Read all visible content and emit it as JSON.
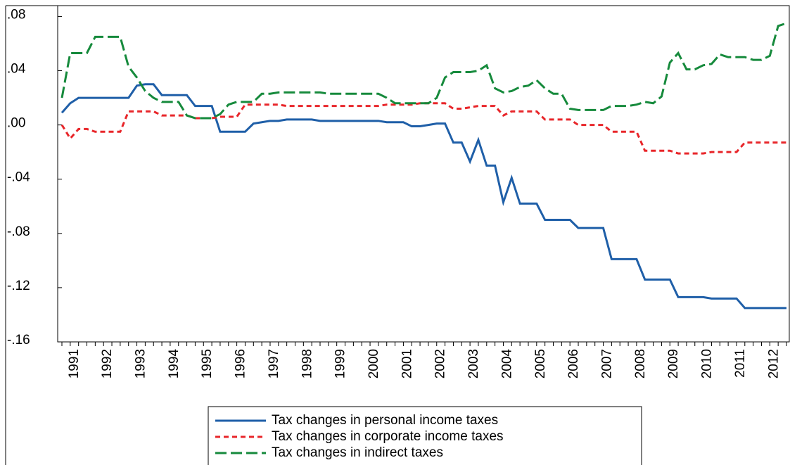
{
  "chart_data": {
    "type": "line",
    "categories": [
      null,
      "1991",
      null,
      null,
      null,
      "1992",
      null,
      null,
      null,
      "1993",
      null,
      null,
      null,
      "1994",
      null,
      null,
      null,
      "1995",
      null,
      null,
      null,
      "1996",
      null,
      null,
      null,
      "1997",
      null,
      null,
      null,
      "1998",
      null,
      null,
      null,
      "1999",
      null,
      null,
      null,
      "2000",
      null,
      null,
      null,
      "2001",
      null,
      null,
      null,
      "2002",
      null,
      null,
      null,
      "2003",
      null,
      null,
      null,
      "2004",
      null,
      null,
      null,
      "2005",
      null,
      null,
      null,
      "2006",
      null,
      null,
      null,
      "2007",
      null,
      null,
      null,
      "2008",
      null,
      null,
      null,
      "2009",
      null,
      null,
      null,
      "2010",
      null,
      null,
      null,
      "2011",
      null,
      null,
      null,
      "2012",
      null,
      null
    ],
    "series": [
      {
        "name": "Tax changes in personal income taxes",
        "color": "#1f5fa8",
        "dash": "solid",
        "values": [
          0.009,
          0.016,
          0.02,
          0.02,
          0.02,
          0.02,
          0.02,
          0.02,
          0.02,
          0.029,
          0.03,
          0.03,
          0.022,
          0.022,
          0.022,
          0.022,
          0.014,
          0.014,
          0.014,
          -0.005,
          -0.005,
          -0.005,
          -0.005,
          0.001,
          0.002,
          0.003,
          0.003,
          0.004,
          0.004,
          0.004,
          0.004,
          0.003,
          0.003,
          0.003,
          0.003,
          0.003,
          0.003,
          0.003,
          0.003,
          0.002,
          0.002,
          0.002,
          -0.001,
          -0.001,
          0.0,
          0.001,
          0.001,
          -0.013,
          -0.013,
          -0.027,
          -0.011,
          -0.03,
          -0.03,
          -0.057,
          -0.039,
          -0.058,
          -0.058,
          -0.058,
          -0.07,
          -0.07,
          -0.07,
          -0.07,
          -0.076,
          -0.076,
          -0.076,
          -0.076,
          -0.099,
          -0.099,
          -0.099,
          -0.099,
          -0.114,
          -0.114,
          -0.114,
          -0.114,
          -0.127,
          -0.127,
          -0.127,
          -0.127,
          -0.128,
          -0.128,
          -0.128,
          -0.128,
          -0.135,
          -0.135,
          -0.135,
          -0.135,
          -0.135,
          -0.135
        ]
      },
      {
        "name": "Tax changes in corporate income taxes",
        "color": "#e8262a",
        "dash": "short",
        "values": [
          0.0,
          -0.01,
          -0.003,
          -0.003,
          -0.005,
          -0.005,
          -0.005,
          -0.005,
          0.01,
          0.01,
          0.01,
          0.01,
          0.007,
          0.007,
          0.007,
          0.007,
          0.005,
          0.005,
          0.005,
          0.006,
          0.006,
          0.006,
          0.015,
          0.015,
          0.015,
          0.015,
          0.015,
          0.014,
          0.014,
          0.014,
          0.014,
          0.014,
          0.014,
          0.014,
          0.014,
          0.014,
          0.014,
          0.014,
          0.014,
          0.015,
          0.015,
          0.015,
          0.015,
          0.016,
          0.016,
          0.016,
          0.016,
          0.012,
          0.012,
          0.013,
          0.014,
          0.014,
          0.014,
          0.007,
          0.01,
          0.01,
          0.01,
          0.01,
          0.004,
          0.004,
          0.004,
          0.004,
          0.0,
          0.0,
          0.0,
          0.0,
          -0.005,
          -0.005,
          -0.005,
          -0.005,
          -0.019,
          -0.019,
          -0.019,
          -0.019,
          -0.021,
          -0.021,
          -0.021,
          -0.021,
          -0.02,
          -0.02,
          -0.02,
          -0.02,
          -0.013,
          -0.013,
          -0.013,
          -0.013,
          -0.013,
          -0.013
        ]
      },
      {
        "name": "Tax changes in indirect taxes",
        "color": "#168a3c",
        "dash": "long",
        "values": [
          0.02,
          0.053,
          0.053,
          0.053,
          0.065,
          0.065,
          0.065,
          0.065,
          0.043,
          0.035,
          0.025,
          0.02,
          0.017,
          0.017,
          0.017,
          0.007,
          0.005,
          0.005,
          0.005,
          0.008,
          0.015,
          0.017,
          0.017,
          0.017,
          0.023,
          0.023,
          0.024,
          0.024,
          0.024,
          0.024,
          0.024,
          0.024,
          0.023,
          0.023,
          0.023,
          0.023,
          0.023,
          0.023,
          0.023,
          0.02,
          0.016,
          0.016,
          0.016,
          0.016,
          0.016,
          0.02,
          0.035,
          0.039,
          0.039,
          0.039,
          0.04,
          0.044,
          0.027,
          0.024,
          0.025,
          0.028,
          0.029,
          0.033,
          0.027,
          0.023,
          0.023,
          0.012,
          0.011,
          0.011,
          0.011,
          0.011,
          0.014,
          0.014,
          0.014,
          0.015,
          0.017,
          0.016,
          0.021,
          0.046,
          0.053,
          0.041,
          0.041,
          0.044,
          0.045,
          0.052,
          0.05,
          0.05,
          0.05,
          0.048,
          0.048,
          0.051,
          0.073,
          0.075
        ]
      }
    ],
    "ylim": [
      -0.16,
      0.088
    ],
    "yticks": [
      {
        "value": 0.08,
        "label": ".08"
      },
      {
        "value": 0.04,
        "label": ".04"
      },
      {
        "value": 0,
        "label": ".00"
      },
      {
        "value": -0.04,
        "label": "-.04"
      },
      {
        "value": -0.08,
        "label": "-.08"
      },
      {
        "value": -0.12,
        "label": "-.12"
      },
      {
        "value": -0.16,
        "label": "-.16"
      }
    ],
    "legend": "bottom"
  }
}
